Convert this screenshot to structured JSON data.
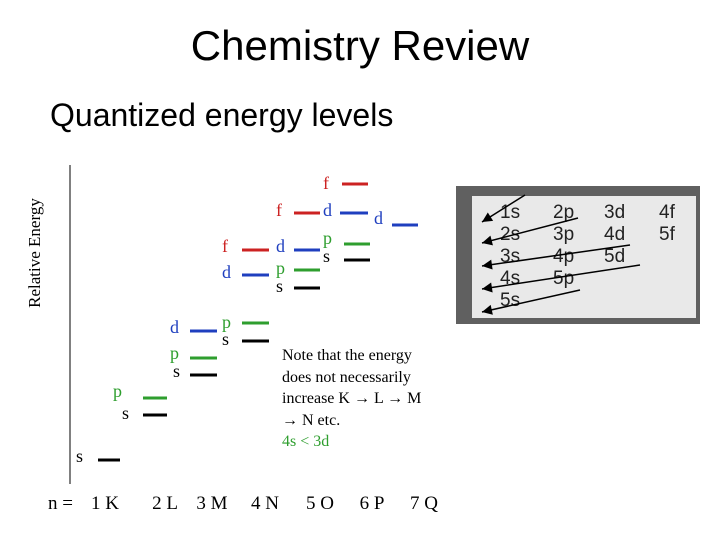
{
  "title": "Chemistry Review",
  "subtitle": "Quantized energy levels",
  "y_axis_label": "Relative Energy",
  "shell_axis": {
    "prefix": "n =",
    "shells": [
      {
        "n": "1",
        "letter": "K"
      },
      {
        "n": "2",
        "letter": "L"
      },
      {
        "n": "3",
        "letter": "M"
      },
      {
        "n": "4",
        "letter": "N"
      },
      {
        "n": "5",
        "letter": "O"
      },
      {
        "n": "6",
        "letter": "P"
      },
      {
        "n": "7",
        "letter": "Q"
      }
    ]
  },
  "levels": [
    {
      "label": "s",
      "shell": "1",
      "color": "#000000"
    },
    {
      "label": "s",
      "shell": "2",
      "color": "#000000"
    },
    {
      "label": "p",
      "shell": "2",
      "color": "#2e9e2e"
    },
    {
      "label": "s",
      "shell": "3",
      "color": "#000000"
    },
    {
      "label": "p",
      "shell": "3",
      "color": "#2e9e2e"
    },
    {
      "label": "d",
      "shell": "3",
      "color": "#1f3fbf"
    },
    {
      "label": "s",
      "shell": "4",
      "color": "#000000"
    },
    {
      "label": "p",
      "shell": "4",
      "color": "#2e9e2e"
    },
    {
      "label": "d",
      "shell": "4",
      "color": "#1f3fbf"
    },
    {
      "label": "f",
      "shell": "4",
      "color": "#cc2222"
    },
    {
      "label": "s",
      "shell": "5",
      "color": "#000000"
    },
    {
      "label": "p",
      "shell": "5",
      "color": "#2e9e2e"
    },
    {
      "label": "d",
      "shell": "5",
      "color": "#1f3fbf"
    },
    {
      "label": "f",
      "shell": "5",
      "color": "#cc2222"
    },
    {
      "label": "s",
      "shell": "6",
      "color": "#000000"
    },
    {
      "label": "p",
      "shell": "6",
      "color": "#2e9e2e"
    },
    {
      "label": "d",
      "shell": "6",
      "color": "#1f3fbf"
    },
    {
      "label": "f",
      "shell": "6",
      "color": "#cc2222"
    },
    {
      "label": "d",
      "shell": "7",
      "color": "#1f3fbf"
    }
  ],
  "note": {
    "line1": "Note that the energy",
    "line2": "does not necessarily",
    "line3": "increase K → L → M",
    "line4": "→ N etc.",
    "line5": "4s < 3d"
  },
  "fill_order_table": {
    "columns": [
      [
        "1s",
        "2s",
        "3s",
        "4s",
        "5s"
      ],
      [
        "2p",
        "3p",
        "4p",
        "5p"
      ],
      [
        "3d",
        "4d",
        "5d"
      ],
      [
        "4f",
        "5f"
      ]
    ]
  }
}
